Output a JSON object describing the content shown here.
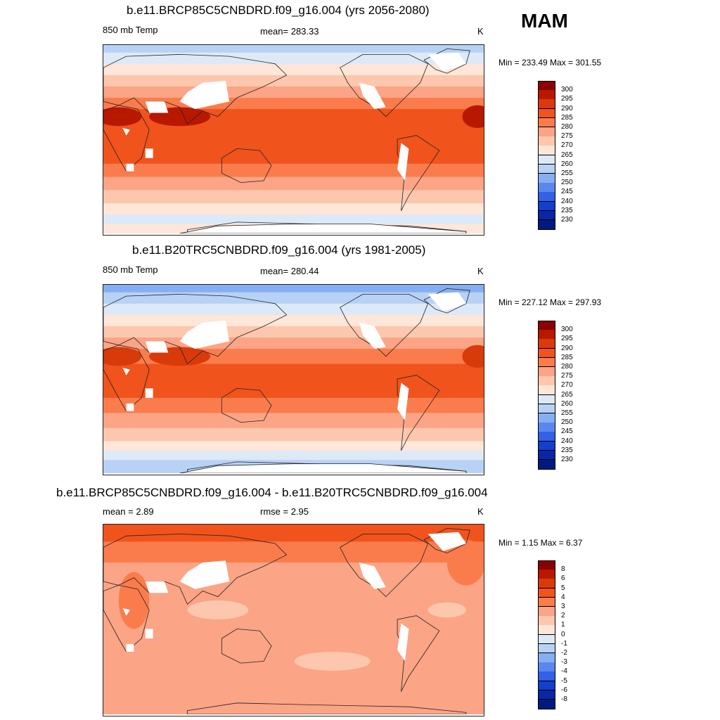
{
  "season": "MAM",
  "units": "K",
  "panels": [
    {
      "title": "b.e11.BRCP85C5CNBDRD.f09_g16.004 (yrs 2056-2080)",
      "left_label": "850 mb Temp",
      "center_label": "mean= 283.33",
      "right_label": "K",
      "minmax": "Min = 233.49 Max = 301.55",
      "variant": "future"
    },
    {
      "title": "b.e11.B20TRC5CNBDRD.f09_g16.004 (yrs 1981-2005)",
      "left_label": "850 mb Temp",
      "center_label": "mean= 280.44",
      "right_label": "K",
      "minmax": "Min = 227.12 Max = 297.93",
      "variant": "past"
    },
    {
      "title": "b.e11.BRCP85C5CNBDRD.f09_g16.004 - b.e11.B20TRC5CNBDRD.f09_g16.004",
      "left_label": "mean =   2.89",
      "center_label": "rmse =   2.95",
      "right_label": "K",
      "minmax": "Min =   1.15 Max =   6.37",
      "variant": "diff"
    }
  ],
  "colorbars": {
    "abs": {
      "labels": [
        "300",
        "295",
        "290",
        "285",
        "280",
        "275",
        "270",
        "265",
        "260",
        "255",
        "250",
        "245",
        "240",
        "235",
        "230"
      ],
      "colors": [
        "#8b0000",
        "#b81800",
        "#d93a0a",
        "#f0531c",
        "#fa7c4c",
        "#fba486",
        "#fdc7ad",
        "#fee6d8",
        "#dde9f7",
        "#b8d2f5",
        "#86aef2",
        "#5b86ee",
        "#3161e5",
        "#123fcc",
        "#0a26a6",
        "#001a80"
      ]
    },
    "diff": {
      "labels": [
        "8",
        "6",
        "5",
        "4",
        "3",
        "2",
        "1",
        "0",
        "-1",
        "-2",
        "-3",
        "-4",
        "-5",
        "-6",
        "-8"
      ],
      "colors": [
        "#8b0000",
        "#b81800",
        "#d93a0a",
        "#f0531c",
        "#fa7c4c",
        "#fba486",
        "#fdc7ad",
        "#fee6d8",
        "#dde9f7",
        "#b8d2f5",
        "#86aef2",
        "#5b86ee",
        "#3161e5",
        "#123fcc",
        "#0a26a6",
        "#001a80"
      ]
    }
  }
}
